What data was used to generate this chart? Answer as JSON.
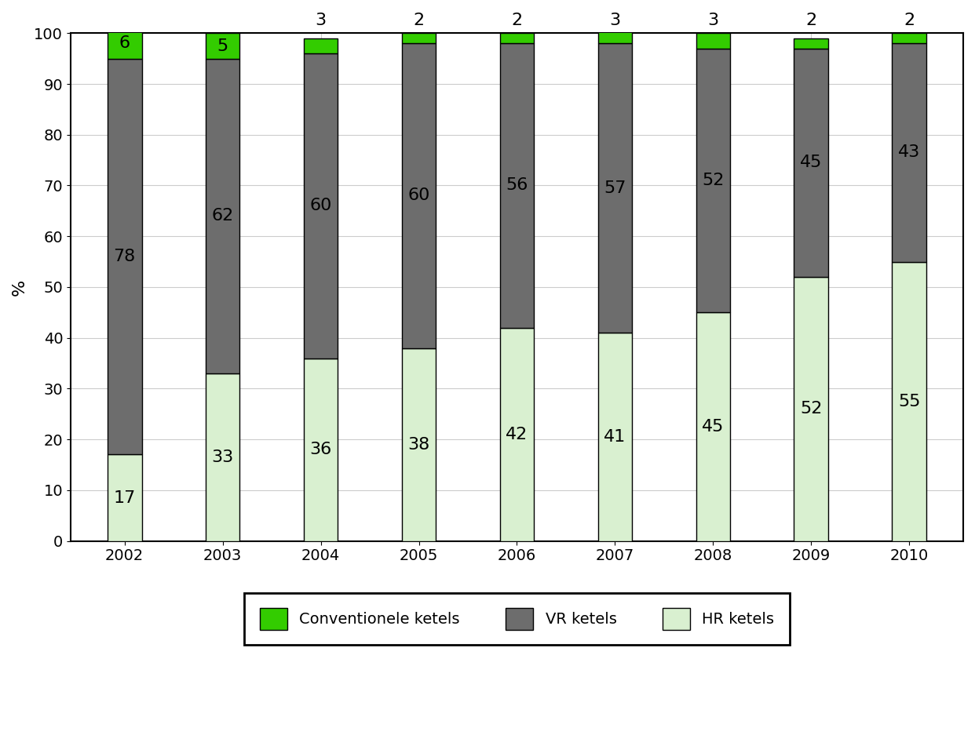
{
  "years": [
    "2002",
    "2003",
    "2004",
    "2005",
    "2006",
    "2007",
    "2008",
    "2009",
    "2010"
  ],
  "hr_ketels": [
    17,
    33,
    36,
    38,
    42,
    41,
    45,
    52,
    55
  ],
  "vr_ketels": [
    78,
    62,
    60,
    60,
    56,
    57,
    52,
    45,
    43
  ],
  "conventionele_ketels": [
    6,
    5,
    3,
    2,
    2,
    3,
    3,
    2,
    2
  ],
  "color_hr": "#d9f0d0",
  "color_vr": "#6d6d6d",
  "color_conv": "#33cc00",
  "ylabel": "%",
  "ylim": [
    0,
    100
  ],
  "legend_labels": [
    "Conventionele ketels",
    "VR ketels",
    "HR ketels"
  ],
  "bar_width": 0.35,
  "background_color": "#ffffff",
  "grid_color": "#cccccc",
  "fontsize_ticks": 14,
  "fontsize_label": 16,
  "fontsize_bar": 16
}
